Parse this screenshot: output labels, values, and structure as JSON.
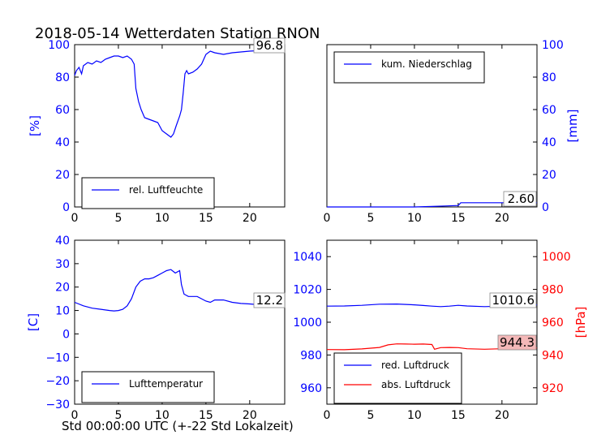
{
  "title": "2018-05-14 Wetterdaten Station RNON",
  "xlabel": "Std 00:00:00 UTC (+-22 Std Lokalzeit)",
  "colors": {
    "blue": "#0000ff",
    "red": "#ff0000",
    "label_box_red": "#f4b8b8"
  },
  "chart_data": [
    {
      "type": "line",
      "ylabel": "[%]",
      "xlim": [
        0,
        24
      ],
      "ylim": [
        0,
        100
      ],
      "xticks": [
        0,
        5,
        10,
        15,
        20
      ],
      "yticks": [
        0,
        20,
        40,
        60,
        80,
        100
      ],
      "legend": "lower-left",
      "last_value_label": "96.8",
      "series": [
        {
          "name": "rel. Luftfeuchte",
          "color": "#0000ff",
          "x": [
            0,
            0.2,
            0.5,
            0.8,
            1,
            1.5,
            2,
            2.5,
            3,
            3.5,
            4,
            4.5,
            5,
            5.5,
            6,
            6.5,
            6.8,
            7,
            7.3,
            7.6,
            8,
            8.5,
            9,
            9.5,
            10,
            10.5,
            11,
            11.3,
            11.6,
            12,
            12.2,
            12.4,
            12.6,
            12.8,
            13,
            13.5,
            14,
            14.5,
            15,
            15.5,
            16,
            17,
            18,
            19,
            20,
            21,
            22,
            23,
            24
          ],
          "y": [
            81,
            84,
            86,
            82,
            87,
            89,
            88,
            90,
            89,
            91,
            92,
            93,
            93,
            92,
            93,
            91,
            88,
            73,
            65,
            60,
            55,
            54,
            53,
            52,
            47,
            45,
            43,
            45,
            50,
            56,
            60,
            70,
            82,
            84,
            82,
            83,
            85,
            88,
            94,
            96,
            95,
            94,
            95,
            95.5,
            96,
            96.3,
            96.5,
            96.7,
            96.8
          ]
        }
      ]
    },
    {
      "type": "line",
      "ylabel": "[mm]",
      "xlim": [
        0,
        24
      ],
      "ylim": [
        0,
        100
      ],
      "xticks": [
        0,
        5,
        10,
        15,
        20
      ],
      "yticks": [
        0,
        20,
        40,
        60,
        80,
        100
      ],
      "legend": "upper-left",
      "last_value_label": "2.60",
      "series": [
        {
          "name": "kum. Niederschlag",
          "color": "#0000ff",
          "x": [
            0,
            10,
            12,
            13.5,
            15,
            15.3,
            24
          ],
          "y": [
            0,
            0,
            0.3,
            0.6,
            0.9,
            2.6,
            2.6
          ]
        }
      ]
    },
    {
      "type": "line",
      "ylabel": "[C]",
      "xlim": [
        0,
        24
      ],
      "ylim": [
        -30,
        40
      ],
      "xticks": [
        0,
        5,
        10,
        15,
        20
      ],
      "yticks": [
        -30,
        -20,
        -10,
        0,
        10,
        20,
        30,
        40
      ],
      "legend": "lower-left",
      "last_value_label": "12.2",
      "series": [
        {
          "name": "Lufttemperatur",
          "color": "#0000ff",
          "x": [
            0,
            1,
            2,
            3,
            4,
            4.5,
            5,
            5.5,
            6,
            6.5,
            7,
            7.5,
            8,
            8.5,
            9,
            9.5,
            10,
            10.5,
            11,
            11.5,
            12,
            12.2,
            12.5,
            13,
            14,
            15,
            15.5,
            16,
            17,
            18,
            19,
            20,
            21,
            22,
            23,
            24
          ],
          "y": [
            13.5,
            12,
            11,
            10.5,
            10,
            9.8,
            10,
            10.5,
            12,
            15,
            20,
            22.5,
            23.5,
            23.5,
            24,
            25,
            26,
            27,
            27.5,
            26,
            27,
            21,
            17,
            16,
            16,
            14,
            13.5,
            14.5,
            14.5,
            13.5,
            13,
            12.8,
            12.5,
            12.3,
            12.2,
            12.2
          ]
        }
      ]
    },
    {
      "type": "line",
      "ylim_left": [
        950,
        1050
      ],
      "yticks_left": [
        960,
        980,
        1000,
        1020,
        1040
      ],
      "ylabel_right": "[hPa]",
      "ylim_right": [
        910,
        1010
      ],
      "yticks_right": [
        920,
        940,
        960,
        980,
        1000
      ],
      "xlim": [
        0,
        24
      ],
      "xticks": [
        0,
        5,
        10,
        15,
        20
      ],
      "legend": "lower-left",
      "last_value_labels": [
        "1010.6",
        "944.3"
      ],
      "series": [
        {
          "name": "red. Luftdruck",
          "color": "#0000ff",
          "axis": "left",
          "x": [
            0,
            2,
            4,
            6,
            8,
            10,
            11,
            12,
            13,
            14,
            15,
            16,
            18,
            20,
            22,
            24
          ],
          "y": [
            1009.8,
            1009.9,
            1010.3,
            1011,
            1011.1,
            1010.6,
            1010.2,
            1009.8,
            1009.5,
            1009.8,
            1010.3,
            1009.9,
            1009.5,
            1009.8,
            1010.3,
            1010.6
          ]
        },
        {
          "name": "abs. Luftdruck",
          "color": "#ff0000",
          "axis": "right",
          "x": [
            0,
            2,
            4,
            6,
            7,
            8,
            9,
            10,
            11,
            12,
            12.3,
            13,
            14,
            15,
            16,
            18,
            20,
            22,
            24
          ],
          "y": [
            943.3,
            943.2,
            943.7,
            944.6,
            946.2,
            946.8,
            946.7,
            946.6,
            946.7,
            946.4,
            943.5,
            944.5,
            944.6,
            944.5,
            943.8,
            943.5,
            943.8,
            944.1,
            944.3
          ]
        }
      ]
    }
  ]
}
